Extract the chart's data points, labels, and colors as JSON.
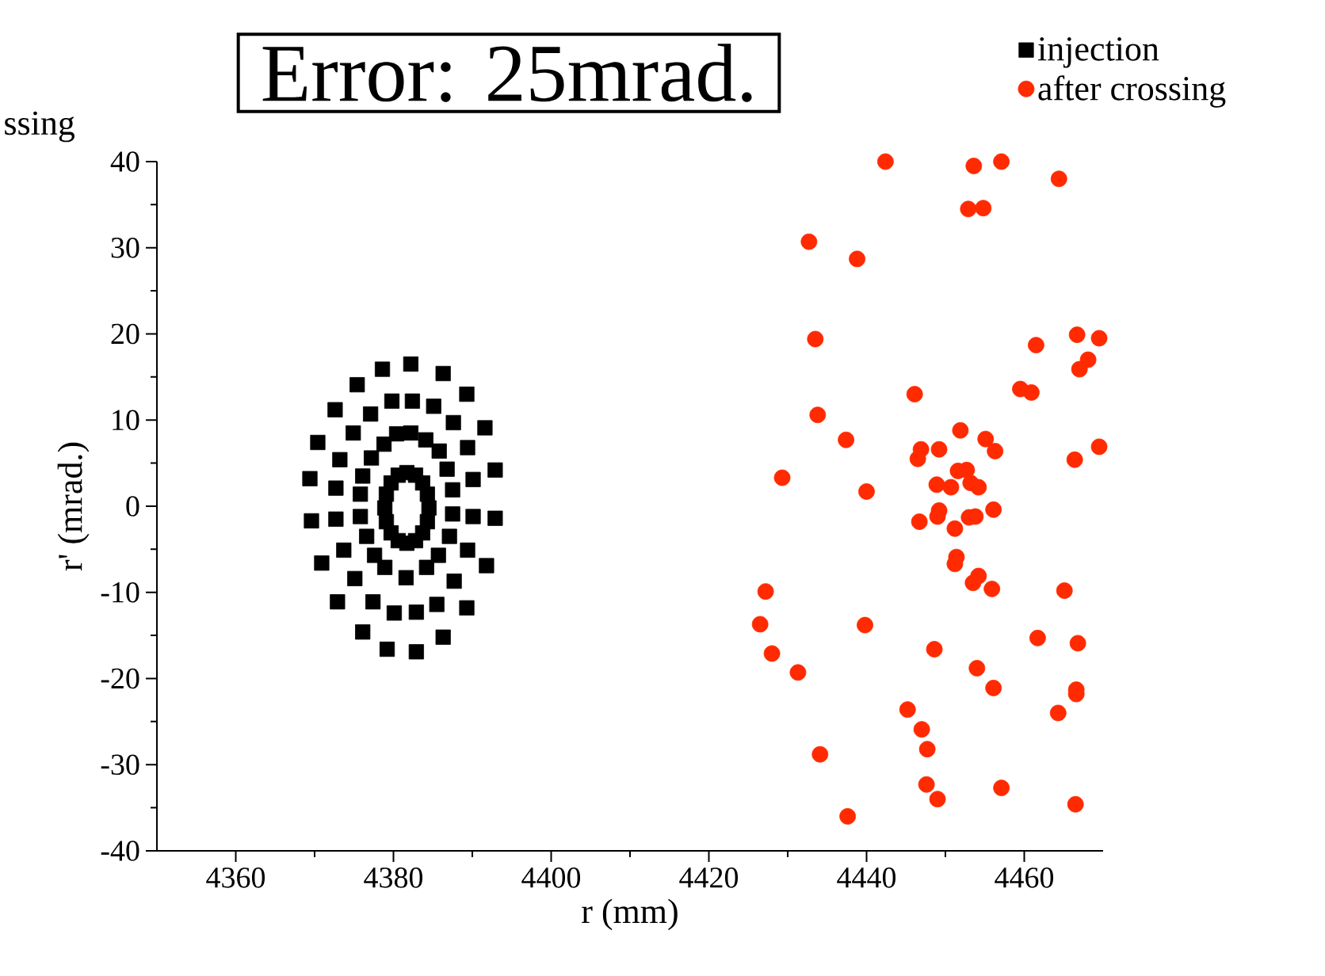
{
  "chart_data": {
    "type": "scatter",
    "title": "Error: 25mrad.",
    "xlabel": "r (mm)",
    "ylabel": "r' (mrad.)",
    "annotations": [
      "ssing"
    ],
    "xlim": [
      4350,
      4470
    ],
    "ylim": [
      -40,
      40
    ],
    "xticks": [
      4360,
      4380,
      4400,
      4420,
      4440,
      4460
    ],
    "yticks": [
      -40,
      -30,
      -20,
      -10,
      0,
      10,
      20,
      30,
      40
    ],
    "grid": false,
    "legend": "top right",
    "series": [
      {
        "name": "injection",
        "marker": "square",
        "color": "#000000",
        "x": [
          4382.2,
          4378.6,
          4386.3,
          4375.4,
          4389.3,
          4372.6,
          4391.6,
          4370.4,
          4392.9,
          4369.4,
          4392.9,
          4369.6,
          4391.8,
          4370.9,
          4389.3,
          4372.9,
          4386.3,
          4376.1,
          4379.2,
          4382.9,
          4382.4,
          4379.8,
          4385.1,
          4377.1,
          4387.6,
          4374.9,
          4389.4,
          4373.2,
          4390.1,
          4372.7,
          4390.1,
          4372.7,
          4389.4,
          4373.7,
          4387.7,
          4375.1,
          4385.5,
          4377.4,
          4380.1,
          4382.9,
          4380.4,
          4382.2,
          4384.1,
          4378.8,
          4385.8,
          4377.2,
          4386.8,
          4376.1,
          4387.5,
          4375.8,
          4387.5,
          4375.8,
          4387.1,
          4376.6,
          4385.7,
          4377.6,
          4384.2,
          4378.9,
          4381.6,
          4384.5,
          4384.3,
          4383.7,
          4382.8,
          4381.7,
          4380.6,
          4379.7,
          4379.1,
          4378.9,
          4379.1,
          4379.7,
          4380.6,
          4381.7,
          4382.8,
          4383.7,
          4384.3
        ],
        "values": [
          16.5,
          15.9,
          15.4,
          14.1,
          13.0,
          11.2,
          9.1,
          7.4,
          4.2,
          3.2,
          -1.4,
          -1.7,
          -6.9,
          -6.6,
          -11.8,
          -11.1,
          -15.2,
          -14.6,
          -16.6,
          -16.9,
          12.2,
          12.2,
          11.6,
          10.7,
          9.7,
          8.5,
          6.8,
          5.4,
          3.1,
          2.1,
          -1.2,
          -1.5,
          -5.1,
          -5.1,
          -8.7,
          -8.4,
          -11.4,
          -11.1,
          -12.4,
          -12.3,
          8.4,
          8.5,
          7.7,
          7.2,
          6.4,
          5.6,
          4.3,
          3.5,
          1.9,
          1.4,
          -0.9,
          -1.2,
          -3.5,
          -3.5,
          -5.7,
          -5.7,
          -7.1,
          -7.1,
          -8.3,
          -0.2,
          1.4,
          2.7,
          3.6,
          3.9,
          3.6,
          2.7,
          1.4,
          -0.2,
          -1.8,
          -3.1,
          -4.0,
          -4.3,
          -4.0,
          -3.1,
          -1.8
        ]
      },
      {
        "name": "after crossing",
        "marker": "circle",
        "color": "#ff2a00",
        "x": [
          4442.4,
          4453.6,
          4457.1,
          4464.4,
          4452.9,
          4454.8,
          4432.7,
          4438.8,
          4433.5,
          4461.5,
          4466.7,
          4469.5,
          4468.1,
          4467.0,
          4446.1,
          4459.5,
          4460.9,
          4433.8,
          4437.4,
          4451.9,
          4455.1,
          4456.3,
          4446.9,
          4446.5,
          4449.2,
          4466.4,
          4469.5,
          4429.3,
          4440.0,
          4451.6,
          4452.7,
          4448.9,
          4450.7,
          4453.2,
          4454.2,
          4449.2,
          4449.0,
          4446.7,
          4451.2,
          4453.0,
          4453.8,
          4456.1,
          4451.4,
          4451.2,
          4454.2,
          4453.5,
          4455.9,
          4465.1,
          4427.2,
          4426.5,
          4439.8,
          4428.0,
          4431.3,
          4448.6,
          4461.7,
          4466.8,
          4454.0,
          4456.1,
          4466.6,
          4466.6,
          4464.3,
          4445.2,
          4447.0,
          4447.7,
          4434.1,
          4447.6,
          4449.0,
          4457.1,
          4466.5,
          4437.6
        ],
        "values": [
          40,
          39.5,
          40,
          38.0,
          34.5,
          34.6,
          30.7,
          28.7,
          19.4,
          18.7,
          19.9,
          19.5,
          17.0,
          15.9,
          13.0,
          13.6,
          13.2,
          10.6,
          7.7,
          8.8,
          7.8,
          6.4,
          6.6,
          5.5,
          6.6,
          5.4,
          6.9,
          3.3,
          1.7,
          4.1,
          4.2,
          2.5,
          2.2,
          2.7,
          2.2,
          -0.5,
          -1.2,
          -1.8,
          -2.6,
          -1.3,
          -1.2,
          -0.4,
          -5.9,
          -6.7,
          -8.1,
          -8.9,
          -9.6,
          -9.8,
          -9.9,
          -13.7,
          -13.8,
          -17.1,
          -19.3,
          -16.6,
          -15.3,
          -15.9,
          -18.8,
          -21.1,
          -21.3,
          -21.8,
          -24.0,
          -23.6,
          -25.9,
          -28.2,
          -28.8,
          -32.3,
          -34.0,
          -32.7,
          -34.6,
          -36.0
        ]
      }
    ]
  }
}
